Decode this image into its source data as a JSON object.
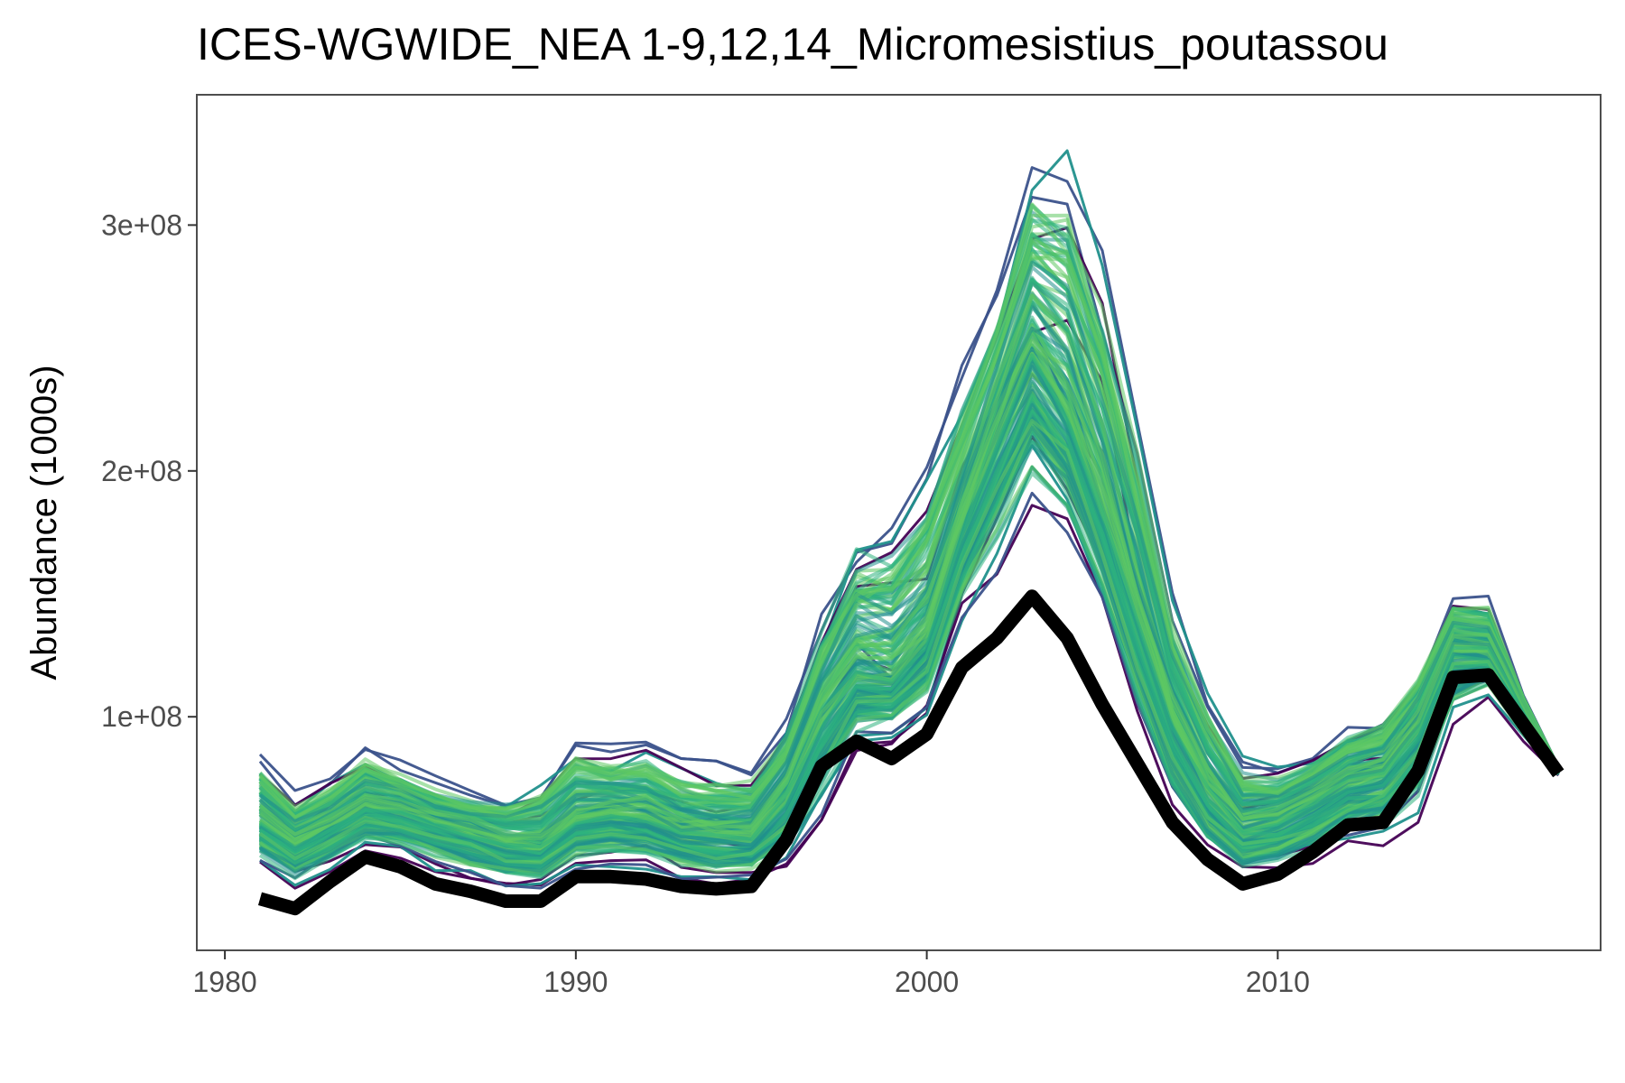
{
  "chart_data": {
    "type": "line",
    "title": "ICES-WGWIDE_NEA 1-9,12,14_Micromesistius_poutassou",
    "xlabel": "",
    "ylabel": "Abundance (1000s)",
    "xlim": [
      1979.2,
      2019.2
    ],
    "ylim": [
      5000000,
      353000000
    ],
    "x_ticks": [
      1980,
      1990,
      2000,
      2010
    ],
    "x_tick_labels": [
      "1980",
      "1990",
      "2000",
      "2010"
    ],
    "y_ticks": [
      100000000,
      200000000,
      300000000
    ],
    "y_tick_labels": [
      "1e+08",
      "2e+08",
      "3e+08"
    ],
    "grid": false,
    "legend": "none",
    "colors": {
      "reference": "#000000",
      "ensemble_palette": [
        "#440154",
        "#3b528b",
        "#21908c",
        "#2db27d",
        "#5ec962"
      ],
      "frame": "#4d4d4d"
    },
    "years": [
      1981,
      1982,
      1983,
      1984,
      1985,
      1986,
      1987,
      1988,
      1989,
      1990,
      1991,
      1992,
      1993,
      1994,
      1995,
      1996,
      1997,
      1998,
      1999,
      2000,
      2001,
      2002,
      2003,
      2004,
      2005,
      2006,
      2007,
      2008,
      2009,
      2010,
      2011,
      2012,
      2013,
      2014,
      2015,
      2016,
      2017,
      2018
    ],
    "reference_series": {
      "values": [
        26000000,
        22000000,
        33000000,
        43000000,
        39000000,
        32000000,
        29000000,
        25000000,
        25000000,
        35000000,
        35000000,
        34000000,
        31000000,
        30000000,
        31000000,
        50000000,
        80000000,
        90000000,
        83000000,
        93000000,
        120000000,
        132000000,
        149000000,
        132000000,
        105000000,
        81000000,
        57000000,
        42000000,
        32000000,
        36000000,
        45000000,
        56000000,
        57000000,
        78000000,
        116000000,
        117000000,
        97000000,
        77000000
      ]
    },
    "ensemble_series": {
      "description_count": 180,
      "central_values": [
        58000000,
        48000000,
        56000000,
        64000000,
        62000000,
        57000000,
        53000000,
        48000000,
        47000000,
        58000000,
        60000000,
        59000000,
        53000000,
        51000000,
        51000000,
        68000000,
        100000000,
        118000000,
        116000000,
        132000000,
        176000000,
        215000000,
        248000000,
        225000000,
        185000000,
        140000000,
        97000000,
        70000000,
        55000000,
        58000000,
        65000000,
        74000000,
        78000000,
        96000000,
        128000000,
        126000000,
        103000000,
        78000000
      ],
      "upper_values": [
        88000000,
        70000000,
        77000000,
        91000000,
        83000000,
        76000000,
        72000000,
        71000000,
        77000000,
        94000000,
        89000000,
        91000000,
        83000000,
        82000000,
        82000000,
        104000000,
        150000000,
        185000000,
        187000000,
        207000000,
        244000000,
        278000000,
        334000000,
        339000000,
        298000000,
        230000000,
        152000000,
        113000000,
        86000000,
        82000000,
        88000000,
        99000000,
        104000000,
        121000000,
        152000000,
        151000000,
        110000000,
        80000000
      ],
      "lower_values": [
        38000000,
        30000000,
        37000000,
        45000000,
        42000000,
        37000000,
        33000000,
        30000000,
        30000000,
        38000000,
        39000000,
        38000000,
        34000000,
        32000000,
        33000000,
        37000000,
        58000000,
        86000000,
        89000000,
        100000000,
        139000000,
        158000000,
        186000000,
        173000000,
        142000000,
        96000000,
        60000000,
        42000000,
        33000000,
        36000000,
        40000000,
        46000000,
        47000000,
        57000000,
        97000000,
        108000000,
        90000000,
        76000000
      ]
    }
  }
}
